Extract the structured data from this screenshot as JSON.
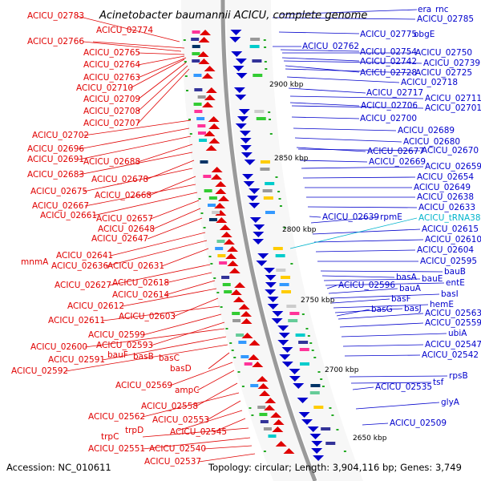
{
  "header": {
    "title": "Acinetobacter baumannii ACICU, complete genome"
  },
  "footer": {
    "accession": "Accession: NC_010611",
    "summary": "Topology: circular; Length: 3,904,116 bp; Genes: 3,749"
  },
  "colors": {
    "reverse_strand": "#e00000",
    "forward_strand": "#0000cc",
    "rna": "#00b4cc",
    "backbone": "#9a9a9a"
  },
  "kbp_markers": [
    "2900 kbp",
    "2850 kbp",
    "2800 kbp",
    "2750 kbp",
    "2700 kbp",
    "2650 kbp"
  ],
  "left_labels": [
    "ACICU_02783",
    "ACICU_02774",
    "ACICU_02766",
    "ACICU_02765",
    "ACICU_02764",
    "ACICU_02763",
    "ACICU_02710",
    "ACICU_02709",
    "ACICU_02708",
    "ACICU_02707",
    "ACICU_02702",
    "ACICU_02696",
    "ACICU_02691",
    "ACICU_02688",
    "ACICU_02683",
    "ACICU_02678",
    "ACICU_02675",
    "ACICU_02668",
    "ACICU_02667",
    "ACICU_02661",
    "ACICU_02657",
    "ACICU_02648",
    "ACICU_02647",
    "ACICU_02641",
    "mnmA",
    "ACICU_02636",
    "ACICU_02631",
    "ACICU_02627",
    "ACICU_02618",
    "ACICU_02614",
    "ACICU_02612",
    "ACICU_02603",
    "ACICU_02611",
    "ACICU_02599",
    "ACICU_02593",
    "ACICU_02600",
    "ACICU_02591",
    "bauF",
    "basB",
    "basC",
    "ACICU_02592",
    "basD",
    "ACICU_02569",
    "ampC",
    "ACICU_02558",
    "ACICU_02562",
    "ACICU_02553",
    "trpD",
    "ACICU_02545",
    "trpC",
    "ACICU_02551",
    "ACICU_02540",
    "ACICU_02537"
  ],
  "right_labels": [
    "era",
    "rnc",
    "ACICU_02785",
    "ACICU_02775",
    "obgE",
    "ACICU_02762",
    "ACICU_02754",
    "ACICU_02750",
    "ACICU_02742",
    "ACICU_02739",
    "ACICU_02728",
    "ACICU_02725",
    "ACICU_02718",
    "ACICU_02717",
    "ACICU_02711",
    "ACICU_02706",
    "ACICU_02701",
    "ACICU_02700",
    "ACICU_02689",
    "ACICU_02680",
    "ACICU_02677",
    "ACICU_02670",
    "ACICU_02669",
    "ACICU_02659",
    "ACICU_02654",
    "ACICU_02649",
    "ACICU_02638",
    "ACICU_02633",
    "ACICU_02639",
    "rpmE",
    "ACICU_tRNA38",
    "ACICU_02615",
    "ACICU_02610",
    "ACICU_02604",
    "ACICU_02595",
    "bauB",
    "basA",
    "bauE",
    "entE",
    "ACICU_02596",
    "bauA",
    "basI",
    "basF",
    "hemE",
    "basJ",
    "basG",
    "ACICU_02563",
    "ACICU_02559",
    "ubiA",
    "ACICU_02547",
    "ACICU_02542",
    "rpsB",
    "tsf",
    "ACICU_02535",
    "glyA",
    "ACICU_02509"
  ]
}
